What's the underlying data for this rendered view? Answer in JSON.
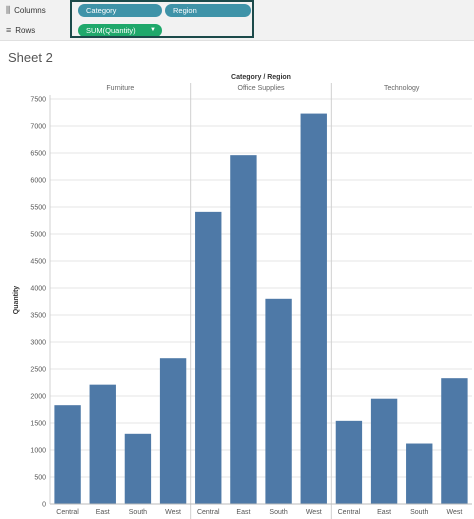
{
  "shelves": {
    "columns_label": "Columns",
    "rows_label": "Rows",
    "columns_pills": [
      "Category",
      "Region"
    ],
    "rows_pills": [
      "SUM(Quantity)"
    ]
  },
  "sheet": {
    "title": "Sheet 2"
  },
  "colors": {
    "bar": "#4e79a7",
    "pill_blue": "#3f93a8",
    "pill_green": "#1fa86b"
  },
  "chart_data": {
    "type": "bar",
    "title": "Category / Region",
    "ylabel": "Quantity",
    "ylim": [
      0,
      7500
    ],
    "yticks": [
      0,
      500,
      1000,
      1500,
      2000,
      2500,
      3000,
      3500,
      4000,
      4500,
      5000,
      5500,
      6000,
      6500,
      7000,
      7500
    ],
    "panels": [
      {
        "name": "Furniture",
        "categories": [
          "Central",
          "East",
          "South",
          "West"
        ],
        "values": [
          1830,
          2210,
          1300,
          2700
        ]
      },
      {
        "name": "Office Supplies",
        "categories": [
          "Central",
          "East",
          "South",
          "West"
        ],
        "values": [
          5410,
          6460,
          3800,
          7230
        ]
      },
      {
        "name": "Technology",
        "categories": [
          "Central",
          "East",
          "South",
          "West"
        ],
        "values": [
          1540,
          1950,
          1120,
          2330
        ]
      }
    ],
    "grid": true
  }
}
